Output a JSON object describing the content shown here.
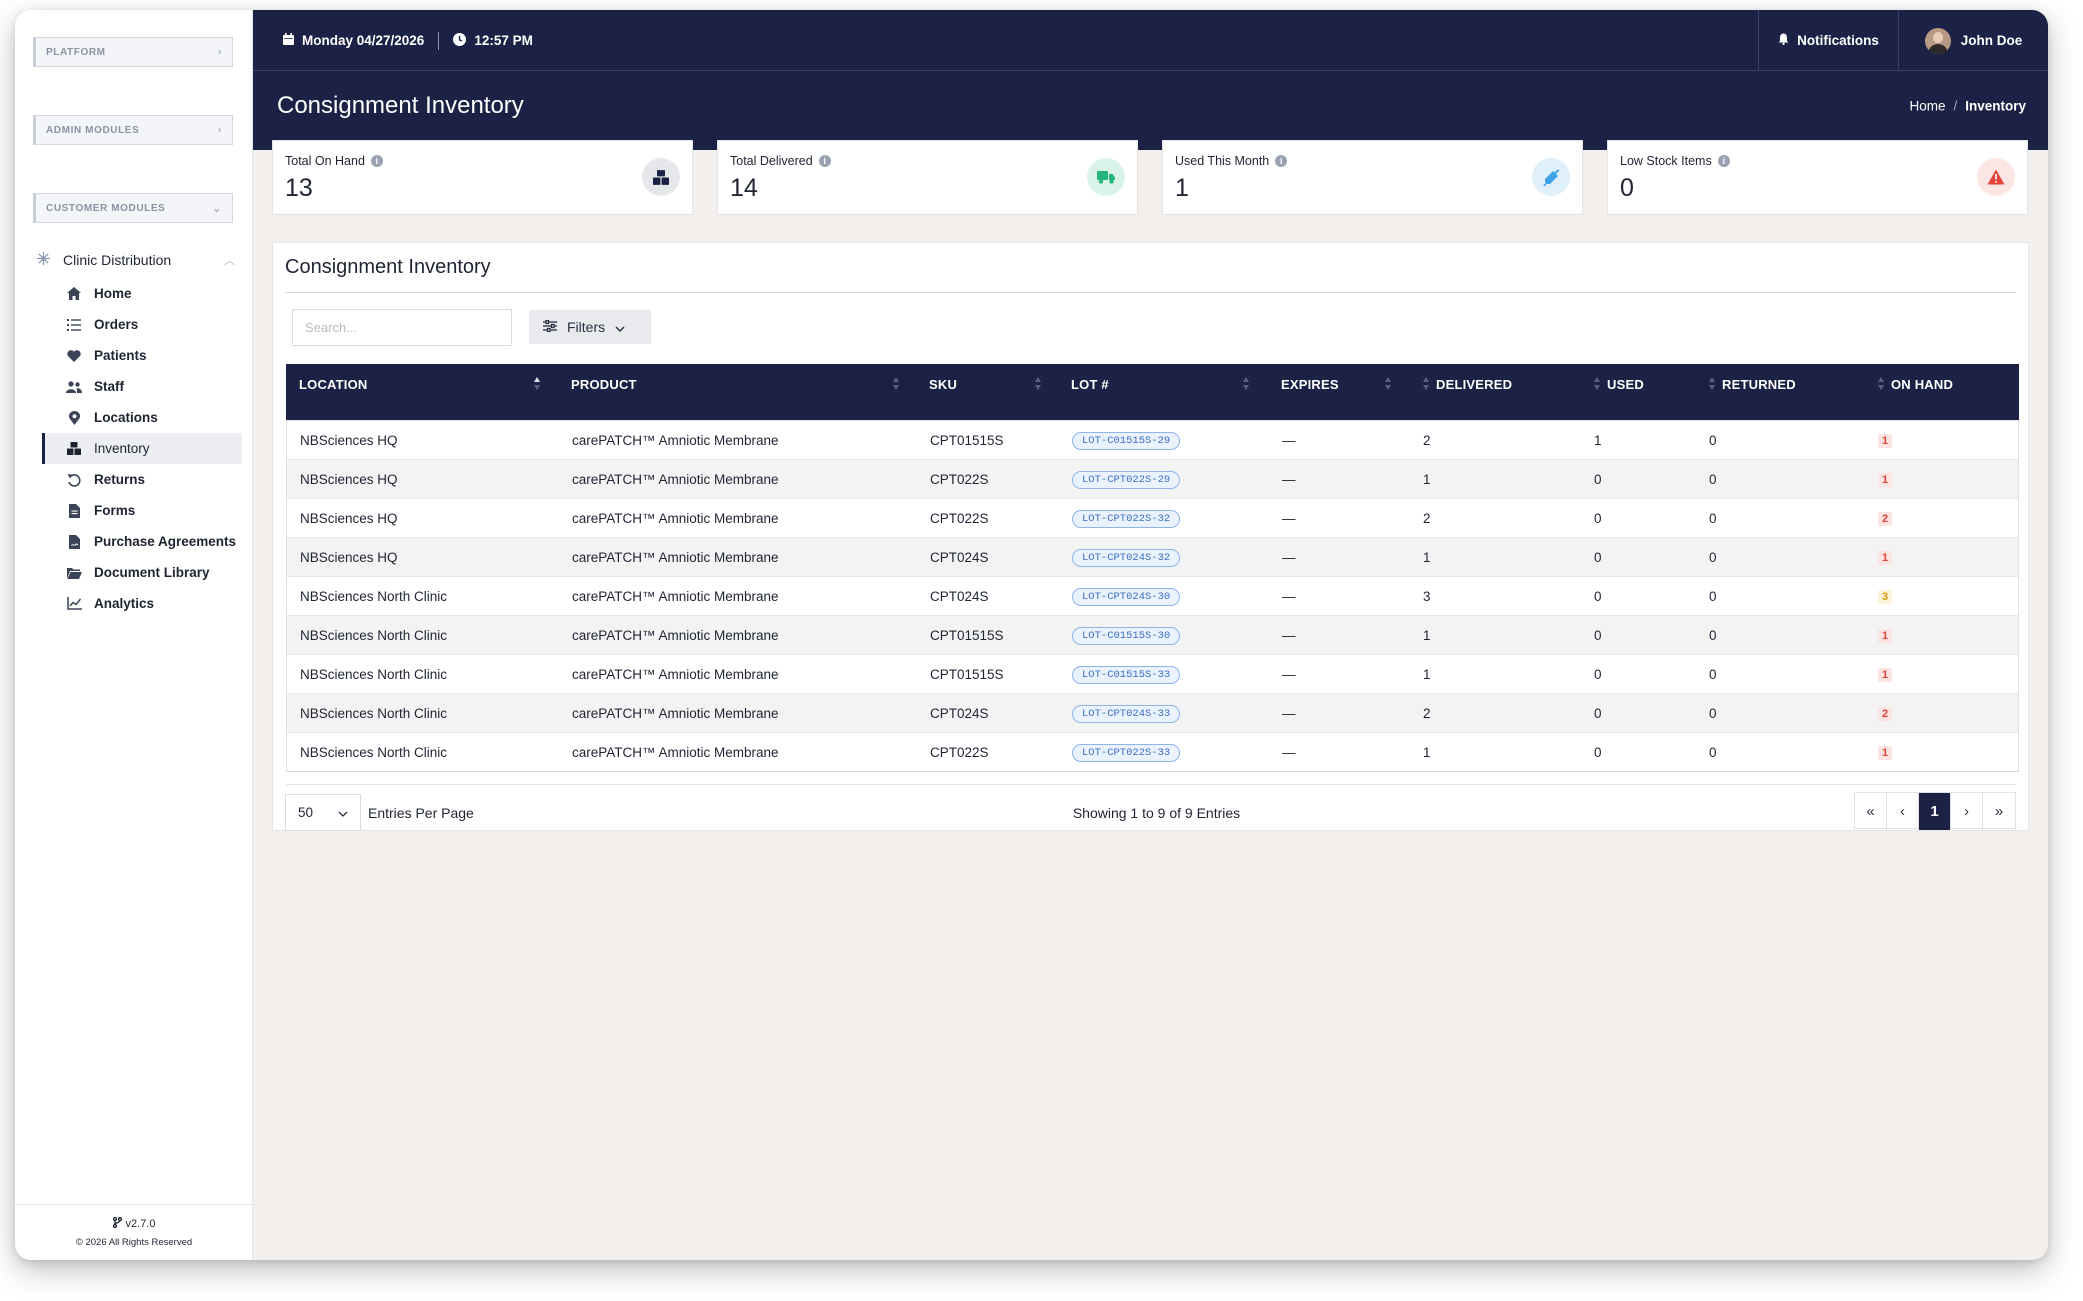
{
  "sidebar": {
    "modules": [
      "PLATFORM",
      "ADMIN MODULES",
      "CUSTOMER MODULES"
    ],
    "group": "Clinic Distribution",
    "items": [
      {
        "label": "Home",
        "icon": "home-icon"
      },
      {
        "label": "Orders",
        "icon": "list-icon"
      },
      {
        "label": "Patients",
        "icon": "heart-icon"
      },
      {
        "label": "Staff",
        "icon": "users-icon"
      },
      {
        "label": "Locations",
        "icon": "map-pin-icon"
      },
      {
        "label": "Inventory",
        "icon": "boxes-icon",
        "active": true
      },
      {
        "label": "Returns",
        "icon": "undo-icon"
      },
      {
        "label": "Forms",
        "icon": "file-icon"
      },
      {
        "label": "Purchase Agreements",
        "icon": "contract-icon"
      },
      {
        "label": "Document Library",
        "icon": "folder-icon"
      },
      {
        "label": "Analytics",
        "icon": "line-chart-icon"
      }
    ],
    "version": "v2.7.0",
    "copyright": "© 2026 All Rights Reserved"
  },
  "topbar": {
    "date": "Monday 04/27/2026",
    "time": "12:57 PM",
    "notifications": "Notifications",
    "user": "John Doe"
  },
  "header": {
    "title": "Consignment Inventory",
    "breadcrumb_home": "Home",
    "breadcrumb_current": "Inventory"
  },
  "stats": [
    {
      "label": "Total On Hand",
      "value": "13",
      "icon": "boxes-icon",
      "color": "#1c2245"
    },
    {
      "label": "Total Delivered",
      "value": "14",
      "icon": "truck-icon",
      "color": "#22b47c"
    },
    {
      "label": "Used This Month",
      "value": "1",
      "icon": "syringe-icon",
      "color": "#3fa2e8"
    },
    {
      "label": "Low Stock Items",
      "value": "0",
      "icon": "warning-icon",
      "color": "#e0443a"
    }
  ],
  "panel": {
    "title": "Consignment Inventory",
    "search_placeholder": "Search...",
    "filters_label": "Filters"
  },
  "table": {
    "columns": [
      "LOCATION",
      "PRODUCT",
      "SKU",
      "LOT #",
      "EXPIRES",
      "DELIVERED",
      "USED",
      "RETURNED",
      "ON HAND"
    ],
    "rows": [
      {
        "location": "NBSciences HQ",
        "product": "carePATCH™ Amniotic Membrane",
        "sku": "CPT01515S",
        "lot": "LOT-C01515S-29",
        "expires": "—",
        "delivered": "2",
        "used": "1",
        "returned": "0",
        "on_hand": "1",
        "level": "red"
      },
      {
        "location": "NBSciences HQ",
        "product": "carePATCH™ Amniotic Membrane",
        "sku": "CPT022S",
        "lot": "LOT-CPT022S-29",
        "expires": "—",
        "delivered": "1",
        "used": "0",
        "returned": "0",
        "on_hand": "1",
        "level": "red"
      },
      {
        "location": "NBSciences HQ",
        "product": "carePATCH™ Amniotic Membrane",
        "sku": "CPT022S",
        "lot": "LOT-CPT022S-32",
        "expires": "—",
        "delivered": "2",
        "used": "0",
        "returned": "0",
        "on_hand": "2",
        "level": "red"
      },
      {
        "location": "NBSciences HQ",
        "product": "carePATCH™ Amniotic Membrane",
        "sku": "CPT024S",
        "lot": "LOT-CPT024S-32",
        "expires": "—",
        "delivered": "1",
        "used": "0",
        "returned": "0",
        "on_hand": "1",
        "level": "red"
      },
      {
        "location": "NBSciences North Clinic",
        "product": "carePATCH™ Amniotic Membrane",
        "sku": "CPT024S",
        "lot": "LOT-CPT024S-30",
        "expires": "—",
        "delivered": "3",
        "used": "0",
        "returned": "0",
        "on_hand": "3",
        "level": "yellow"
      },
      {
        "location": "NBSciences North Clinic",
        "product": "carePATCH™ Amniotic Membrane",
        "sku": "CPT01515S",
        "lot": "LOT-C01515S-30",
        "expires": "—",
        "delivered": "1",
        "used": "0",
        "returned": "0",
        "on_hand": "1",
        "level": "red"
      },
      {
        "location": "NBSciences North Clinic",
        "product": "carePATCH™ Amniotic Membrane",
        "sku": "CPT01515S",
        "lot": "LOT-C01515S-33",
        "expires": "—",
        "delivered": "1",
        "used": "0",
        "returned": "0",
        "on_hand": "1",
        "level": "red"
      },
      {
        "location": "NBSciences North Clinic",
        "product": "carePATCH™ Amniotic Membrane",
        "sku": "CPT024S",
        "lot": "LOT-CPT024S-33",
        "expires": "—",
        "delivered": "2",
        "used": "0",
        "returned": "0",
        "on_hand": "2",
        "level": "red"
      },
      {
        "location": "NBSciences North Clinic",
        "product": "carePATCH™ Amniotic Membrane",
        "sku": "CPT022S",
        "lot": "LOT-CPT022S-33",
        "expires": "—",
        "delivered": "1",
        "used": "0",
        "returned": "0",
        "on_hand": "1",
        "level": "red"
      }
    ]
  },
  "pagination": {
    "per_page": "50",
    "per_page_label": "Entries Per Page",
    "showing": "Showing 1 to 9 of 9 Entries",
    "first": "«",
    "prev": "‹",
    "page": "1",
    "next": "›",
    "last": "»"
  }
}
